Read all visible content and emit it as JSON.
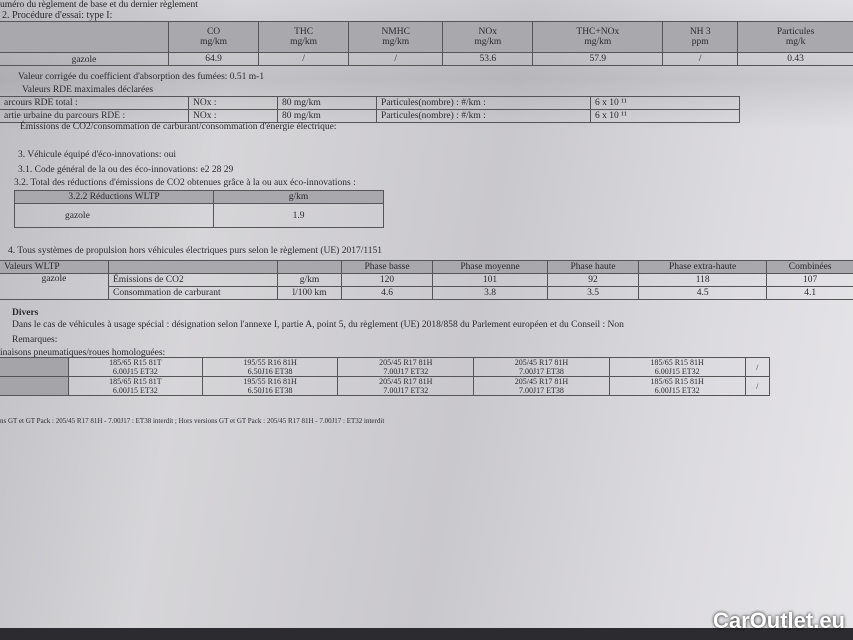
{
  "header_partial": "uméro du règlement de base et du dernier règlement",
  "section_2": {
    "title": "2. Procédure d'essai: type I:",
    "columns": [
      {
        "name": "CO",
        "unit": "mg/km"
      },
      {
        "name": "THC",
        "unit": "mg/km"
      },
      {
        "name": "NMHC",
        "unit": "mg/km"
      },
      {
        "name": "NOx",
        "unit": "mg/km"
      },
      {
        "name": "THC+NOx",
        "unit": "mg/km"
      },
      {
        "name": "NH 3",
        "unit": "ppm"
      },
      {
        "name": "Particules",
        "unit": "mg/k"
      }
    ],
    "row_label": "gazole",
    "values": [
      "64.9",
      "/",
      "/",
      "53.6",
      "57.9",
      "/",
      "0.43"
    ],
    "note": "Valeur corrigée du coefficient d'absorption des fumées: 0.51 m-1"
  },
  "rde": {
    "title": "Valeurs RDE maximales déclarées",
    "rows": [
      {
        "label": "arcours RDE total :",
        "nox_label": "NOx :",
        "nox": "80 mg/km",
        "pn_label": "Particules(nombre) : #/km :",
        "pn": "6 x 10 ¹¹"
      },
      {
        "label": "artie urbaine du parcours RDE     :",
        "nox_label": "NOx :",
        "nox": "80 mg/km",
        "pn_label": "Particules(nombre) : #/km :",
        "pn": "6 x 10 ¹¹"
      }
    ]
  },
  "co2_title": "Émissions de CO2/consommation de carburant/consommation d'énergie électrique:",
  "eco": {
    "line3": "3. Véhicule équipé d'éco-innovations: oui",
    "line31": "3.1. Code général de la ou des éco-innovations: e2 28 29",
    "line32": "3.2. Total des réductions d'émissions de CO2 obtenues grâce à la ou aux éco-innovations :",
    "table": {
      "h1": "3.2.2 Réductions WLTP",
      "h2": "g/km",
      "label": "gazole",
      "value": "1.9"
    }
  },
  "wltp": {
    "title": "4. Tous systèmes de propulsion hors véhicules électriques purs selon le règlement (UE) 2017/1151",
    "header": [
      "Valeurs WLTP",
      "",
      "",
      "Phase basse",
      "Phase moyenne",
      "Phase haute",
      "Phase extra-haute",
      "Combinées"
    ],
    "fuel": "gazole",
    "rows": [
      {
        "label": "Émissions de CO2",
        "unit": "g/km",
        "values": [
          "120",
          "101",
          "92",
          "118",
          "107"
        ]
      },
      {
        "label": "Consommation de carburant",
        "unit": "l/100 km",
        "values": [
          "4.6",
          "3.8",
          "3.5",
          "4.5",
          "4.1"
        ]
      }
    ]
  },
  "divers": {
    "title": "Divers",
    "text": "Dans le cas de véhicules à usage spécial : désignation selon l'annexe I, partie A, point 5, du règlement (UE) 2018/858 du Parlement européen et du Conseil : Non",
    "remarques": "Remarques:"
  },
  "tyres": {
    "title": "inaisons pneumatiques/roues homologuées:",
    "rows": [
      [
        [
          "185/65 R15 81T",
          "6.00J15 ET32"
        ],
        [
          "195/55 R16 81H",
          "6.50J16 ET38"
        ],
        [
          "205/45 R17 81H",
          "7.00J17 ET32"
        ],
        [
          "205/45 R17 81H",
          "7.00J17 ET38"
        ],
        [
          "185/65 R15 81H",
          "6.00J15 ET32"
        ],
        [
          "/",
          ""
        ]
      ],
      [
        [
          "185/65 R15 81T",
          "6.00J15 ET32"
        ],
        [
          "195/55 R16 81H",
          "6.50J16 ET38"
        ],
        [
          "205/45 R17 81H",
          "7.00J17 ET32"
        ],
        [
          "205/45 R17 81H",
          "7.00J17 ET38"
        ],
        [
          "185/65 R15 81H",
          "6.00J15 ET32"
        ],
        [
          "/",
          ""
        ]
      ]
    ],
    "footnote": "ns GT et GT Pack : 205/45 R17 81H - 7.00J17 : ET38 interdit ; Hors versions GT et GT Pack : 205/45 R17 81H - 7.00J17 : ET32 interdit"
  },
  "watermark": "CarOutlet.eu"
}
